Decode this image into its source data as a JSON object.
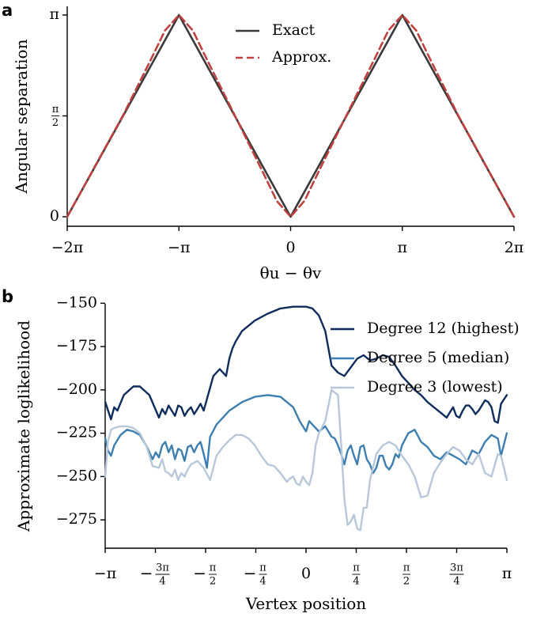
{
  "chart_data": [
    {
      "panel": "a",
      "type": "line",
      "xlabel": "θu − θv",
      "ylabel": "Angular separation",
      "xlim": [
        -6.2832,
        6.2832
      ],
      "ylim": [
        0,
        3.1416
      ],
      "xticks": [
        {
          "value": -6.2832,
          "label": "−2π"
        },
        {
          "value": -3.1416,
          "label": "−π"
        },
        {
          "value": 0,
          "label": "0"
        },
        {
          "value": 3.1416,
          "label": "π"
        },
        {
          "value": 6.2832,
          "label": "2π"
        }
      ],
      "yticks": [
        {
          "value": 0,
          "label": "0"
        },
        {
          "value": 1.5708,
          "label": "π/2"
        },
        {
          "value": 3.1416,
          "label": "π"
        }
      ],
      "legend_position": "top-center",
      "series": [
        {
          "name": "Exact",
          "color": "#3a3a3a",
          "style": "solid",
          "x": [
            -6.2832,
            -3.1416,
            0,
            3.1416,
            6.2832
          ],
          "y": [
            0,
            3.1416,
            0,
            3.1416,
            0
          ]
        },
        {
          "name": "Approx.",
          "color": "#c0423f",
          "style": "dashed",
          "x": [
            -6.2832,
            -5.4978,
            -4.7124,
            -3.927,
            -3.5343,
            -3.1416,
            -2.7489,
            -2.3562,
            -1.5708,
            -0.7854,
            -0.3927,
            0,
            0.3927,
            0.7854,
            1.5708,
            2.3562,
            2.7489,
            3.1416,
            3.5343,
            3.927,
            4.7124,
            5.4978,
            6.2832
          ],
          "y": [
            0,
            0.79,
            1.58,
            2.45,
            2.9,
            3.1416,
            2.9,
            2.45,
            1.58,
            0.7,
            0.25,
            0,
            0.25,
            0.7,
            1.58,
            2.45,
            2.9,
            3.1416,
            2.9,
            2.45,
            1.58,
            0.79,
            0
          ]
        }
      ]
    },
    {
      "panel": "b",
      "type": "line",
      "xlabel": "Vertex position",
      "ylabel": "Approximate loglikelihood",
      "xlim": [
        -3.1416,
        3.1416
      ],
      "ylim": [
        -290,
        -143
      ],
      "xticks": [
        {
          "value": -3.1416,
          "label": "−π"
        },
        {
          "value": -2.3562,
          "label": "−3π/4"
        },
        {
          "value": -1.5708,
          "label": "−π/2"
        },
        {
          "value": -0.7854,
          "label": "−π/4"
        },
        {
          "value": 0,
          "label": "0"
        },
        {
          "value": 0.7854,
          "label": "π/4"
        },
        {
          "value": 1.5708,
          "label": "π/2"
        },
        {
          "value": 2.3562,
          "label": "3π/4"
        },
        {
          "value": 3.1416,
          "label": "π"
        }
      ],
      "yticks": [
        {
          "value": -150,
          "label": "−150"
        },
        {
          "value": -175,
          "label": "−175"
        },
        {
          "value": -200,
          "label": "−200"
        },
        {
          "value": -225,
          "label": "−225"
        },
        {
          "value": -250,
          "label": "−250"
        },
        {
          "value": -275,
          "label": "−275"
        }
      ],
      "legend_position": "top-right",
      "series": [
        {
          "name": "Degree 12 (highest)",
          "color": "#0f2d5c",
          "x": [
            -3.14,
            -3.05,
            -3.0,
            -2.95,
            -2.85,
            -2.7,
            -2.6,
            -2.45,
            -2.3,
            -2.25,
            -2.2,
            -2.15,
            -2.1,
            -2.05,
            -2.0,
            -1.95,
            -1.9,
            -1.85,
            -1.8,
            -1.75,
            -1.7,
            -1.65,
            -1.6,
            -1.45,
            -1.35,
            -1.25,
            -1.2,
            -1.15,
            -1.1,
            -1.0,
            -0.8,
            -0.6,
            -0.4,
            -0.2,
            0.0,
            0.1,
            0.2,
            0.3,
            0.4,
            0.5,
            0.6,
            0.7,
            0.8,
            0.9,
            1.0,
            1.1,
            1.2,
            1.3,
            1.4,
            1.5,
            1.6,
            1.7,
            1.8,
            1.9,
            2.0,
            2.1,
            2.2,
            2.25,
            2.3,
            2.35,
            2.4,
            2.45,
            2.5,
            2.55,
            2.6,
            2.65,
            2.7,
            2.75,
            2.8,
            2.85,
            2.9,
            2.95,
            3.0,
            3.05,
            3.14
          ],
          "y": [
            -207,
            -217,
            -210,
            -212,
            -203,
            -198,
            -198,
            -203,
            -216,
            -211,
            -214,
            -209,
            -212,
            -215,
            -209,
            -210,
            -215,
            -212,
            -210,
            -214,
            -211,
            -208,
            -212,
            -192,
            -188,
            -192,
            -182,
            -176,
            -172,
            -166,
            -160,
            -156,
            -153,
            -152,
            -152,
            -153,
            -157,
            -166,
            -186,
            -190,
            -192,
            -187,
            -182,
            -180,
            -183,
            -182,
            -180,
            -181,
            -186,
            -192,
            -196,
            -200,
            -203,
            -207,
            -210,
            -213,
            -216,
            -213,
            -210,
            -215,
            -216,
            -212,
            -209,
            -209,
            -211,
            -214,
            -212,
            -209,
            -206,
            -207,
            -210,
            -218,
            -219,
            -208,
            -203
          ]
        },
        {
          "name": "Degree 5 (median)",
          "color": "#3d7fb0",
          "x": [
            -3.14,
            -3.1,
            -3.05,
            -3.0,
            -2.9,
            -2.8,
            -2.7,
            -2.6,
            -2.5,
            -2.4,
            -2.35,
            -2.3,
            -2.25,
            -2.2,
            -2.15,
            -2.1,
            -2.05,
            -2.0,
            -1.95,
            -1.9,
            -1.85,
            -1.8,
            -1.75,
            -1.7,
            -1.65,
            -1.6,
            -1.55,
            -1.5,
            -1.4,
            -1.2,
            -1.0,
            -0.8,
            -0.6,
            -0.4,
            -0.2,
            -0.1,
            0.0,
            0.05,
            0.1,
            0.2,
            0.3,
            0.4,
            0.45,
            0.5,
            0.55,
            0.6,
            0.65,
            0.7,
            0.75,
            0.8,
            0.85,
            0.9,
            0.95,
            1.0,
            1.05,
            1.1,
            1.15,
            1.2,
            1.25,
            1.3,
            1.35,
            1.4,
            1.45,
            1.5,
            1.6,
            1.7,
            1.8,
            1.9,
            2.0,
            2.1,
            2.2,
            2.3,
            2.4,
            2.5,
            2.6,
            2.7,
            2.8,
            2.9,
            3.0,
            3.05,
            3.14
          ],
          "y": [
            -228,
            -235,
            -238,
            -232,
            -226,
            -223,
            -224,
            -226,
            -232,
            -240,
            -236,
            -239,
            -232,
            -230,
            -236,
            -232,
            -240,
            -234,
            -235,
            -241,
            -233,
            -232,
            -236,
            -232,
            -230,
            -237,
            -245,
            -227,
            -220,
            -212,
            -207,
            -204,
            -203,
            -204,
            -210,
            -218,
            -224,
            -218,
            -220,
            -224,
            -221,
            -227,
            -228,
            -232,
            -237,
            -243,
            -235,
            -232,
            -238,
            -243,
            -233,
            -232,
            -240,
            -243,
            -248,
            -245,
            -238,
            -238,
            -244,
            -246,
            -243,
            -237,
            -239,
            -232,
            -225,
            -223,
            -230,
            -233,
            -238,
            -240,
            -236,
            -238,
            -240,
            -243,
            -235,
            -237,
            -230,
            -226,
            -228,
            -238,
            -225
          ]
        },
        {
          "name": "Degree 3 (lowest)",
          "color": "#b8c7d9",
          "x": [
            -3.14,
            -3.1,
            -3.05,
            -3.0,
            -2.9,
            -2.8,
            -2.7,
            -2.6,
            -2.5,
            -2.4,
            -2.3,
            -2.25,
            -2.2,
            -2.15,
            -2.1,
            -2.05,
            -2.0,
            -1.95,
            -1.9,
            -1.85,
            -1.8,
            -1.7,
            -1.6,
            -1.5,
            -1.4,
            -1.3,
            -1.2,
            -1.1,
            -1.0,
            -0.9,
            -0.8,
            -0.7,
            -0.6,
            -0.5,
            -0.4,
            -0.3,
            -0.25,
            -0.2,
            -0.15,
            -0.1,
            -0.05,
            0.0,
            0.05,
            0.1,
            0.15,
            0.2,
            0.3,
            0.4,
            0.5,
            0.55,
            0.6,
            0.65,
            0.7,
            0.75,
            0.8,
            0.85,
            0.9,
            0.95,
            1.0,
            1.1,
            1.2,
            1.3,
            1.4,
            1.5,
            1.6,
            1.7,
            1.8,
            1.9,
            2.0,
            2.1,
            2.2,
            2.3,
            2.4,
            2.5,
            2.6,
            2.7,
            2.8,
            2.9,
            3.0,
            3.05,
            3.14
          ],
          "y": [
            -250,
            -230,
            -223,
            -222,
            -221,
            -221,
            -222,
            -225,
            -232,
            -244,
            -245,
            -240,
            -247,
            -248,
            -250,
            -246,
            -252,
            -248,
            -250,
            -246,
            -243,
            -241,
            -245,
            -252,
            -238,
            -233,
            -229,
            -226,
            -226,
            -228,
            -232,
            -238,
            -243,
            -244,
            -248,
            -253,
            -251,
            -250,
            -254,
            -255,
            -250,
            -253,
            -255,
            -248,
            -232,
            -225,
            -218,
            -200,
            -203,
            -232,
            -263,
            -278,
            -276,
            -272,
            -280,
            -281,
            -268,
            -268,
            -252,
            -237,
            -232,
            -230,
            -232,
            -238,
            -243,
            -250,
            -262,
            -261,
            -248,
            -242,
            -237,
            -233,
            -235,
            -240,
            -243,
            -237,
            -248,
            -250,
            -237,
            -238,
            -252
          ]
        }
      ]
    }
  ]
}
